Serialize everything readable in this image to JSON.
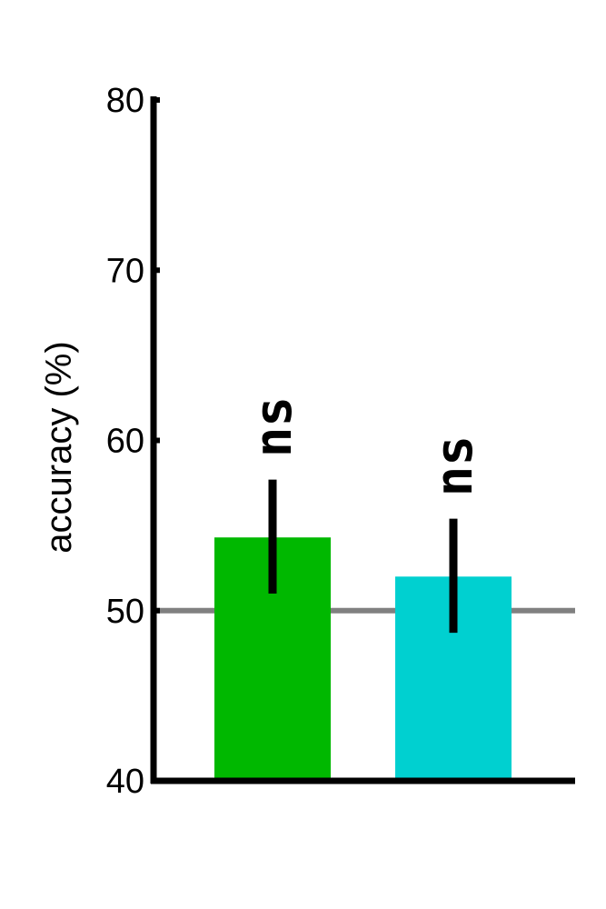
{
  "chart_data": {
    "type": "bar",
    "ylabel": "accuracy (%)",
    "ylim": [
      40,
      80
    ],
    "yticks": [
      40,
      50,
      60,
      70,
      80
    ],
    "reference_line": {
      "y": 50,
      "color": "#808080"
    },
    "grid": false,
    "legend": false,
    "bars": [
      {
        "value": 54.3,
        "err_low": 51.0,
        "err_high": 57.7,
        "color": "#00b800",
        "annotation": "ns"
      },
      {
        "value": 52.0,
        "err_low": 48.7,
        "err_high": 55.4,
        "color": "#00d0d0",
        "annotation": "ns"
      }
    ]
  }
}
